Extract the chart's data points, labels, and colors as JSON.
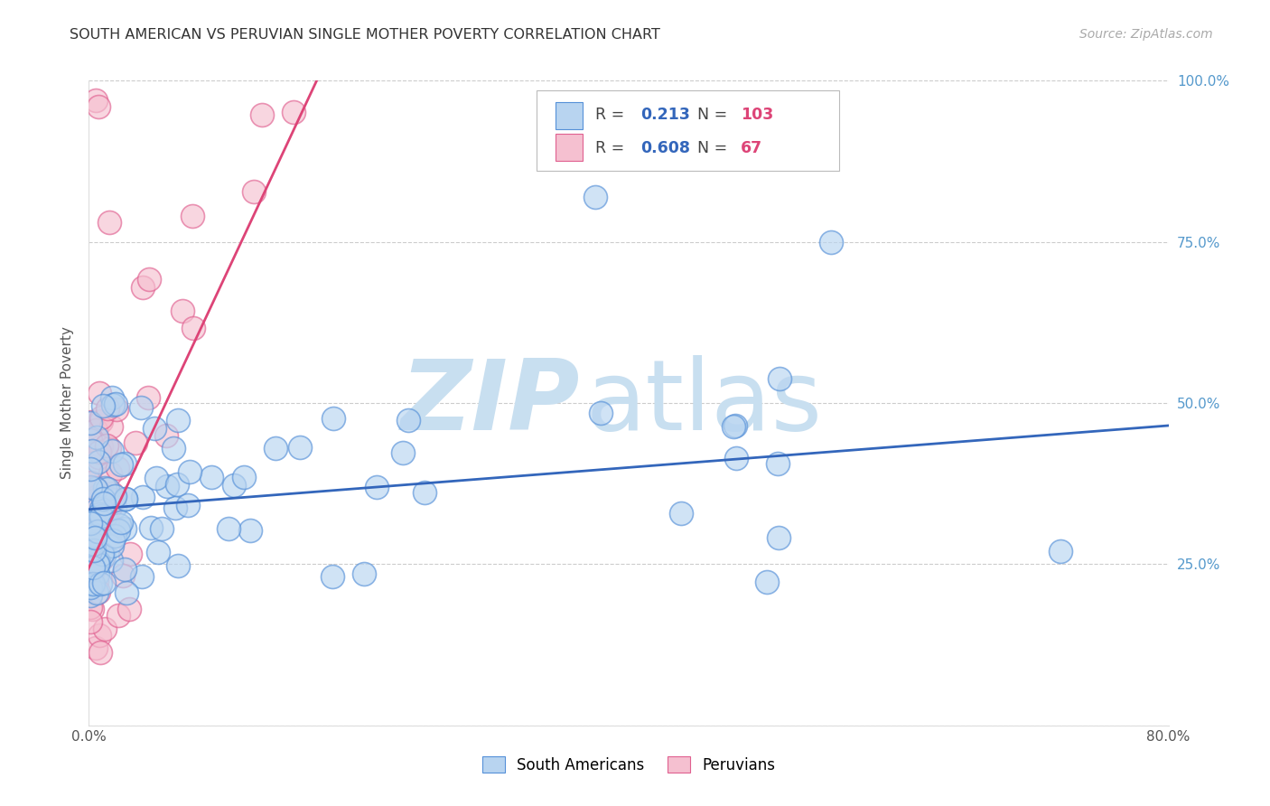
{
  "title": "SOUTH AMERICAN VS PERUVIAN SINGLE MOTHER POVERTY CORRELATION CHART",
  "source": "Source: ZipAtlas.com",
  "xlim": [
    0.0,
    0.8
  ],
  "ylim": [
    0.0,
    1.0
  ],
  "r_south": 0.213,
  "n_south": 103,
  "r_peru": 0.608,
  "n_peru": 67,
  "color_south": "#b8d4f0",
  "color_peru": "#f5c0d0",
  "edge_color_south": "#5590d8",
  "edge_color_peru": "#e06090",
  "line_color_south": "#3366bb",
  "line_color_peru": "#dd4477",
  "watermark_zip": "ZIP",
  "watermark_atlas": "atlas",
  "watermark_color_zip": "#c8dff0",
  "watermark_color_atlas": "#c8dff0",
  "ylabel": "Single Mother Poverty",
  "south_trend": [
    0.0,
    0.335,
    0.8,
    0.465
  ],
  "peru_trend": [
    -0.01,
    0.2,
    0.18,
    1.05
  ],
  "bg_color": "#ffffff",
  "grid_color": "#cccccc",
  "tick_color_right": "#5599cc",
  "title_color": "#333333",
  "source_color": "#aaaaaa",
  "axis_label_color": "#555555",
  "legend_r_color": "#3366bb",
  "legend_n_color": "#dd4477"
}
